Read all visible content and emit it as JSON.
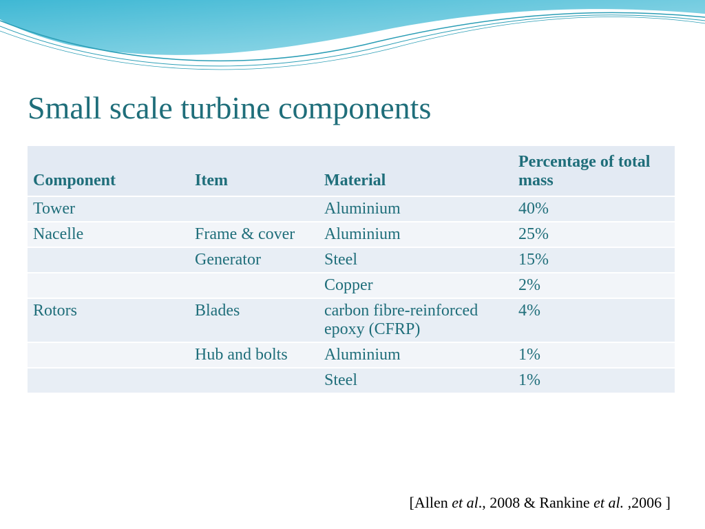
{
  "title": "Small scale turbine components",
  "title_color": "#1f6e7a",
  "table": {
    "header_bg": "#e3eaf3",
    "row_odd_bg": "#e8eef5",
    "row_even_bg": "#f2f5f9",
    "text_color": "#1f6e7a",
    "header_fontsize": 24,
    "cell_fontsize": 24,
    "columns": [
      "Component",
      "Item",
      "Material",
      "Percentage of total mass"
    ],
    "col_widths": [
      "25%",
      "20%",
      "30%",
      "25%"
    ],
    "rows": [
      [
        "Tower",
        "",
        "Aluminium",
        "40%"
      ],
      [
        "Nacelle",
        "Frame & cover",
        "Aluminium",
        "25%"
      ],
      [
        "",
        "Generator",
        "Steel",
        "15%"
      ],
      [
        "",
        "",
        "Copper",
        "2%"
      ],
      [
        "Rotors",
        "Blades",
        "carbon fibre-reinforced epoxy (CFRP)",
        "4%"
      ],
      [
        "",
        "Hub and bolts",
        "Aluminium",
        "1%"
      ],
      [
        "",
        "",
        "Steel",
        "1%"
      ]
    ]
  },
  "citation": {
    "prefix": "[Allen ",
    "i1": "et al",
    "mid": "., 2008 & Rankine  ",
    "i2": "et al. ",
    "suffix": ",2006 ]"
  },
  "wave": {
    "fill": "#5ec5dd",
    "gradient_start": "#3fb8d4",
    "gradient_end": "#a8e0ec",
    "line_color": "#2a9db5"
  }
}
